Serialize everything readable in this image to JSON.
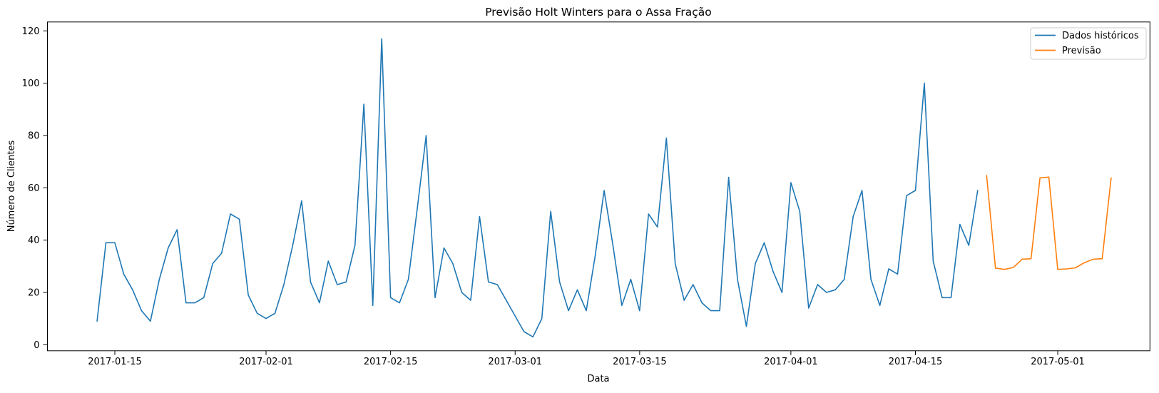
{
  "figure": {
    "title": "Previsão Holt Winters para o Assa Fração",
    "xlabel": "Data",
    "ylabel": "Número de Clientes",
    "background_color": "#ffffff",
    "spine_color": "#000000"
  },
  "legend": {
    "position": "upper right",
    "border_color": "#cccccc",
    "entries": [
      {
        "label": "Dados históricos",
        "color": "#1f77b4"
      },
      {
        "label": "Previsão",
        "color": "#ff7f0e"
      }
    ]
  },
  "chart_data": {
    "type": "line",
    "title": "Previsão Holt Winters para o Assa Fração",
    "xlabel": "Data",
    "ylabel": "Número de Clientes",
    "ylim": [
      -2.5,
      123
    ],
    "yticks": [
      0,
      20,
      40,
      60,
      80,
      100,
      120
    ],
    "xticks": [
      "2017-01-15",
      "2017-02-01",
      "2017-02-15",
      "2017-03-01",
      "2017-03-15",
      "2017-04-01",
      "2017-04-15",
      "2017-05-01"
    ],
    "grid": false,
    "legend_position": "upper right",
    "frequency": "daily",
    "series": [
      {
        "name": "Dados históricos",
        "color": "#1f77b4",
        "start_date": "2017-01-13",
        "values": [
          9,
          39,
          39,
          27,
          21,
          13,
          9,
          25,
          37,
          44,
          16,
          16,
          18,
          31,
          35,
          50,
          48,
          19,
          12,
          10,
          12,
          23,
          38,
          55,
          24,
          16,
          32,
          23,
          24,
          38,
          92,
          15,
          117,
          18,
          16,
          25,
          52,
          80,
          18,
          37,
          31,
          20,
          17,
          49,
          24,
          23,
          17,
          11,
          5,
          3,
          10,
          51,
          24,
          13,
          21,
          13,
          34,
          59,
          38,
          15,
          25,
          13,
          50,
          45,
          79,
          31,
          17,
          23,
          16,
          13,
          13,
          64,
          25,
          7,
          31,
          39,
          28,
          20,
          62,
          51,
          14,
          23,
          20,
          21,
          25,
          49,
          59,
          25,
          15,
          29,
          27,
          57,
          59,
          100,
          32,
          18,
          18,
          46,
          38,
          59
        ]
      },
      {
        "name": "Previsão",
        "color": "#ff7f0e",
        "start_date": "2017-04-23",
        "values": [
          64.7,
          29.3,
          28.8,
          29.5,
          32.7,
          32.9,
          63.8,
          64.1,
          28.8,
          29.0,
          29.4,
          31.4,
          32.7,
          32.9,
          63.8
        ]
      }
    ]
  }
}
